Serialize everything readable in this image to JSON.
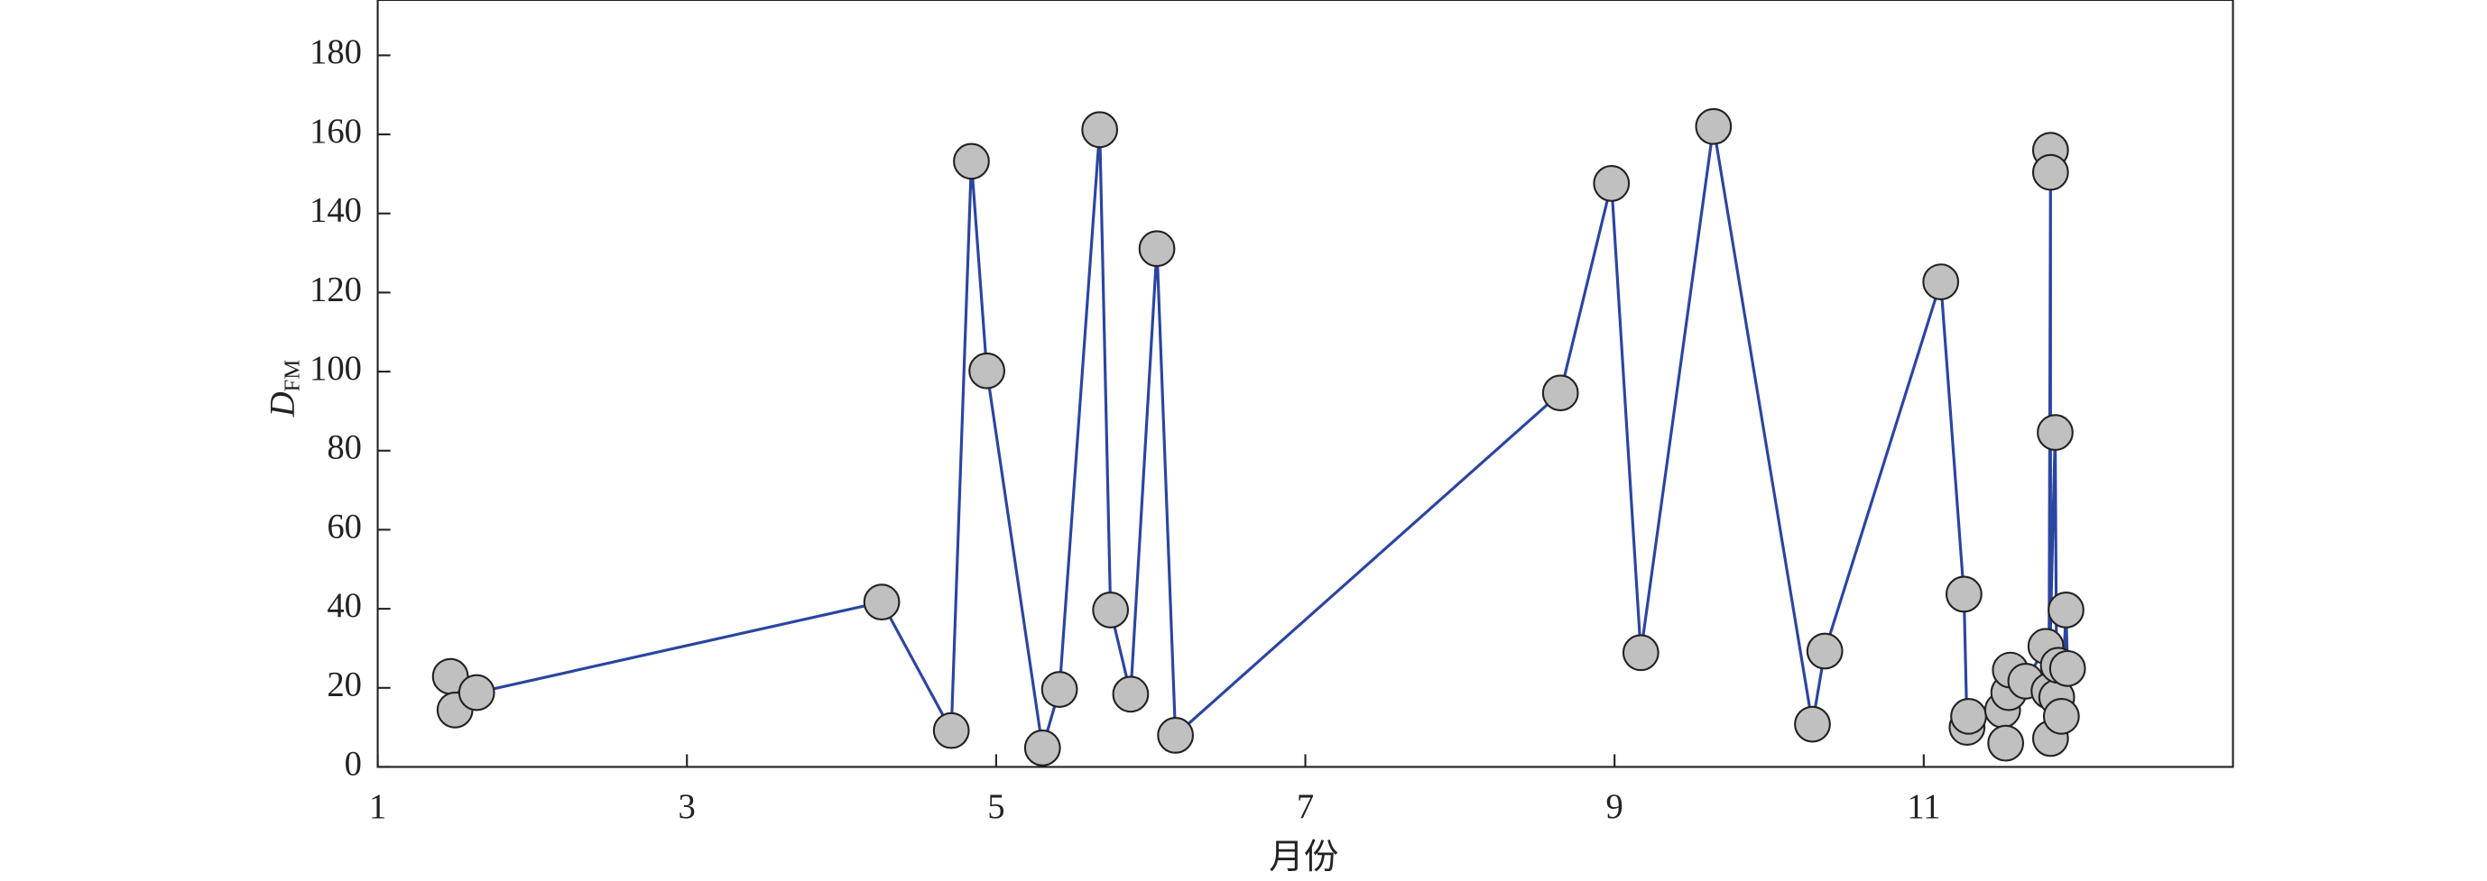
{
  "chart_data": {
    "type": "line",
    "xlabel": "月份",
    "ylabel": {
      "main": "D",
      "sub": "FM"
    },
    "x": [
      1.47,
      1.5,
      1.64,
      4.26,
      4.71,
      4.84,
      4.94,
      5.3,
      5.41,
      5.67,
      5.74,
      5.87,
      6.04,
      6.16,
      8.65,
      8.98,
      9.17,
      9.64,
      10.28,
      10.36,
      11.11,
      11.26,
      11.28,
      11.29,
      11.51,
      11.53,
      11.55,
      11.56,
      11.66,
      11.79,
      11.82,
      11.82,
      11.82,
      11.81,
      11.85,
      11.86,
      11.87,
      11.89,
      11.92,
      11.93
    ],
    "y": [
      22.9,
      14.4,
      18.8,
      41.7,
      9.2,
      153.2,
      100.2,
      4.8,
      19.6,
      161.2,
      39.7,
      18.4,
      131.1,
      8.0,
      94.6,
      147.6,
      28.9,
      162.0,
      10.8,
      29.3,
      122.7,
      43.7,
      10.0,
      12.8,
      14.4,
      6.0,
      18.8,
      24.5,
      21.7,
      30.5,
      7.2,
      156.0,
      150.4,
      19.2,
      84.6,
      17.6,
      25.7,
      12.8,
      39.7,
      24.9
    ],
    "color": "#2b45a0",
    "marker_color": "#c0c0c0",
    "xlim": [
      1,
      13
    ],
    "xticks": [
      1,
      3,
      5,
      7,
      9,
      11
    ],
    "ylim": [
      0,
      194
    ],
    "yticks": [
      0,
      20,
      40,
      60,
      80,
      100,
      120,
      140,
      160,
      180
    ],
    "grid": false
  }
}
